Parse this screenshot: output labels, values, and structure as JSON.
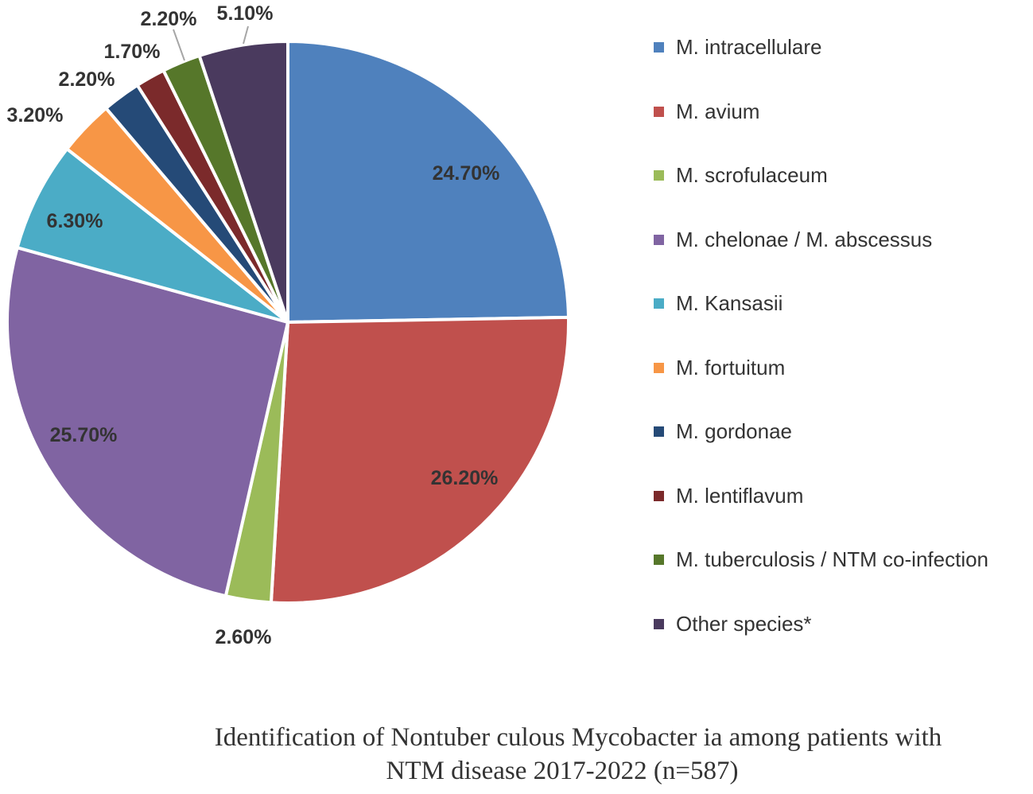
{
  "chart_data": {
    "type": "pie",
    "slices": [
      {
        "label": "M. intracellulare",
        "value": 24.7,
        "display": "24.70%",
        "color": "#4f81bd"
      },
      {
        "label": "M. avium",
        "value": 26.2,
        "display": "26.20%",
        "color": "#c0504d"
      },
      {
        "label": "M. scrofulaceum",
        "value": 2.6,
        "display": "2.60%",
        "color": "#9bbb59"
      },
      {
        "label": "M. chelonae / M. abscessus",
        "value": 25.7,
        "display": "25.70%",
        "color": "#8064a2"
      },
      {
        "label": "M. Kansasii",
        "value": 6.3,
        "display": "6.30%",
        "color": "#4bacc6"
      },
      {
        "label": "M. fortuitum",
        "value": 3.2,
        "display": "3.20%",
        "color": "#f79646"
      },
      {
        "label": "M. gordonae",
        "value": 2.2,
        "display": "2.20%",
        "color": "#254a77"
      },
      {
        "label": "M. lentiflavum",
        "value": 1.7,
        "display": "1.70%",
        "color": "#7b2a2b"
      },
      {
        "label": "M. tuberculosis / NTM co-infection",
        "value": 2.2,
        "display": "2.20%",
        "color": "#56772a"
      },
      {
        "label": "Other species*",
        "value": 5.1,
        "display": "5.10%",
        "color": "#4a3a5e"
      }
    ],
    "legend_placement": "right",
    "caption_line_1": "Identification of  Nontuber culous Mycobacter ia  among patients with",
    "caption_line_2": "NTM disease 2017-2022   (n=587)"
  }
}
